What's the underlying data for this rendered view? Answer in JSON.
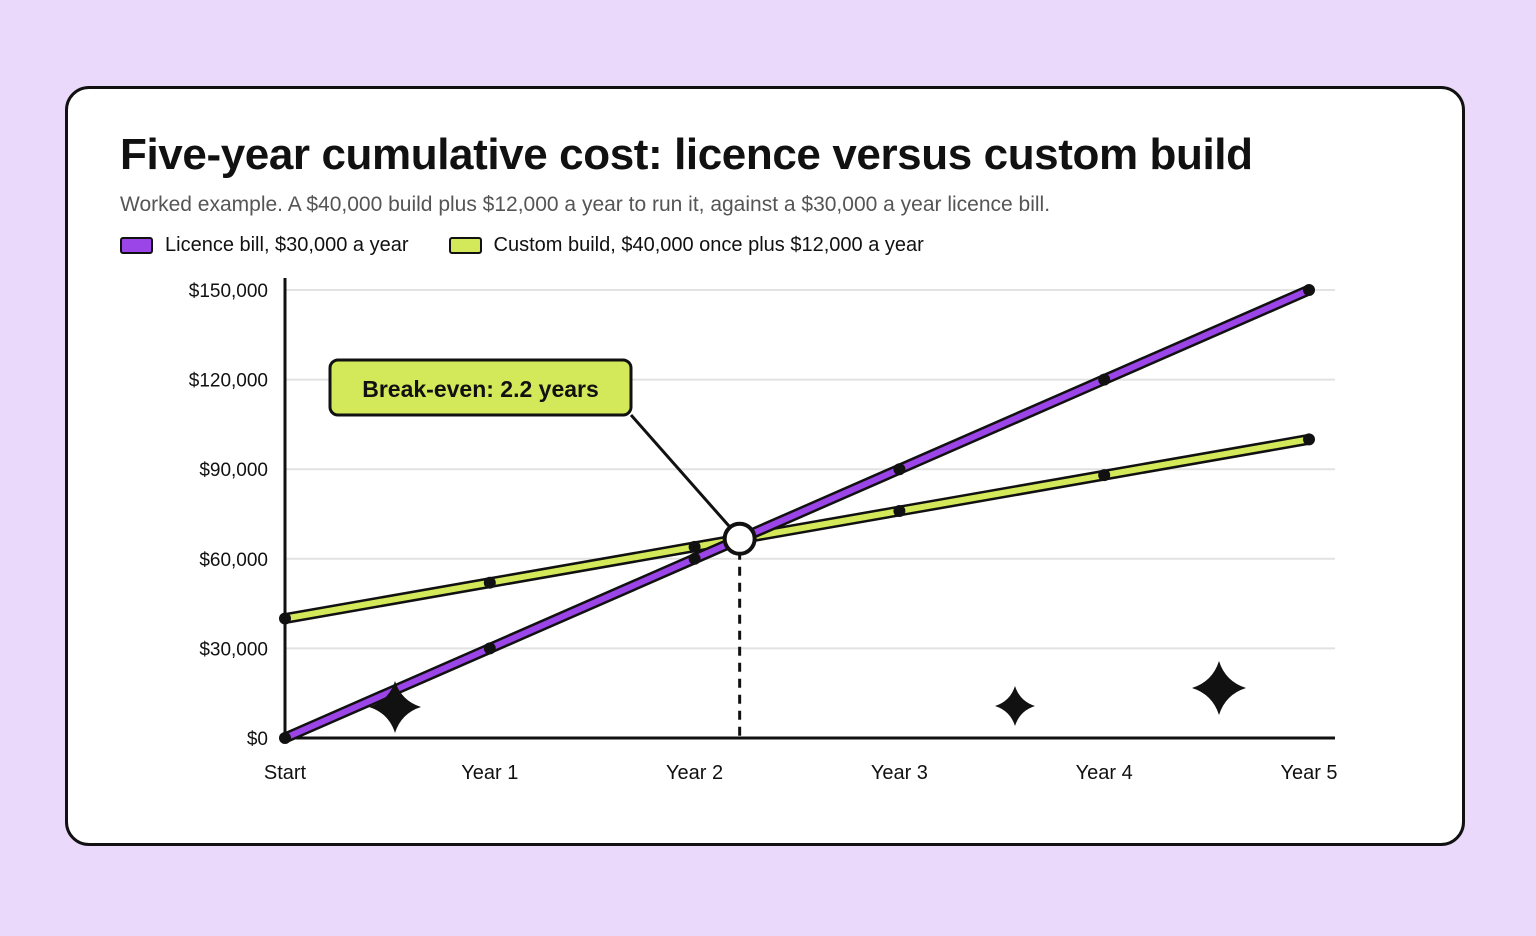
{
  "colors": {
    "page_background": "#ead9fb",
    "card_background": "#ffffff",
    "licence": "#9b45e8",
    "custom": "#d4e95a",
    "ink": "#111111",
    "grid": "#e2e2e2",
    "subtitle": "#555555"
  },
  "chart_data": {
    "type": "line",
    "title": "Five-year cumulative cost: licence versus custom build",
    "subtitle": "Worked example. A $40,000 build plus $12,000 a year to run it, against a $30,000 a year licence bill.",
    "categories": [
      "Start",
      "Year 1",
      "Year 2",
      "Year 3",
      "Year 4",
      "Year 5"
    ],
    "x": [
      0,
      1,
      2,
      3,
      4,
      5
    ],
    "series": [
      {
        "name": "Licence bill, $30,000 a year",
        "color": "#9b45e8",
        "values": [
          0,
          30000,
          60000,
          90000,
          120000,
          150000
        ]
      },
      {
        "name": "Custom build, $40,000 once plus $12,000 a year",
        "color": "#d4e95a",
        "values": [
          40000,
          52000,
          64000,
          76000,
          88000,
          100000
        ]
      }
    ],
    "y_ticks": [
      0,
      30000,
      60000,
      90000,
      120000,
      150000
    ],
    "y_tick_labels": [
      "$0",
      "$30,000",
      "$60,000",
      "$90,000",
      "$120,000",
      "$150,000"
    ],
    "ylim": [
      0,
      150000
    ],
    "xlim": [
      0,
      5
    ],
    "grid": "horizontal",
    "legend_position": "top-left",
    "annotation": {
      "label": "Break-even: 2.2 years",
      "x": 2.22,
      "y": 66700
    },
    "decorative_stars": [
      "four-point-star",
      "four-point-star",
      "four-point-star"
    ]
  }
}
